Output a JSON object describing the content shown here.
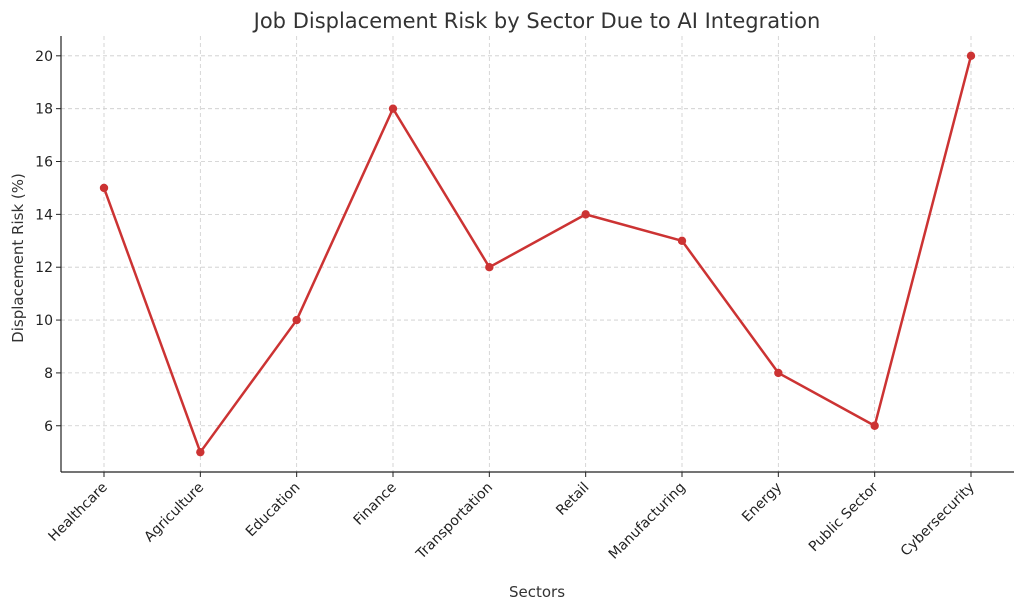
{
  "chart_data": {
    "type": "line",
    "title": "Job Displacement Risk by Sector Due to AI Integration",
    "xlabel": "Sectors",
    "ylabel": "Displacement Risk (%)",
    "categories": [
      "Healthcare",
      "Agriculture",
      "Education",
      "Finance",
      "Transportation",
      "Retail",
      "Manufacturing",
      "Energy",
      "Public Sector",
      "Cybersecurity"
    ],
    "series": [
      {
        "name": "Displacement Risk",
        "values": [
          15,
          5,
          10,
          18,
          12,
          14,
          13,
          8,
          6,
          20
        ]
      }
    ],
    "ylim": [
      4.25,
      20.75
    ],
    "yticks": [
      6,
      8,
      10,
      12,
      14,
      16,
      18,
      20
    ],
    "grid": true,
    "color": "#cc3333",
    "marker": "circle"
  }
}
